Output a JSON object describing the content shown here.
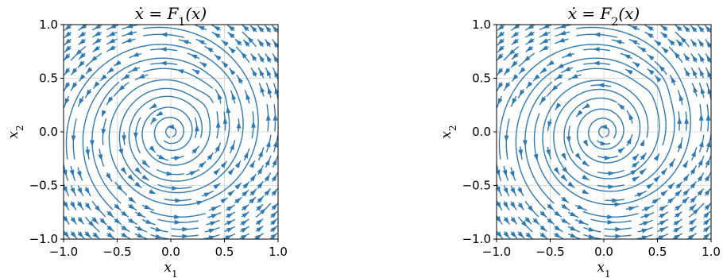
{
  "chart_data": [
    {
      "type": "streamplot",
      "title_parts": {
        "lhs": "ẋ",
        "rhs_fn": "F",
        "rhs_sub": "1",
        "rhs_arg": "(x)"
      },
      "xlabel": {
        "base": "x",
        "sub": "1"
      },
      "ylabel": {
        "base": "x",
        "sub": "2"
      },
      "xlim": [
        -1.0,
        1.0
      ],
      "ylim": [
        -1.0,
        1.0
      ],
      "xticks": [
        "−1.0",
        "−0.5",
        "0.0",
        "0.5",
        "1.0"
      ],
      "yticks": [
        "−1.0",
        "−0.5",
        "0.0",
        "0.5",
        "1.0"
      ],
      "grid": true,
      "color": "#2e7bb4",
      "field": {
        "type": "spiral-source",
        "center": [
          0.0,
          0.0
        ],
        "perturbation_center": [
          0.4,
          0.35
        ]
      }
    },
    {
      "type": "streamplot",
      "title_parts": {
        "lhs": "ẋ",
        "rhs_fn": "F",
        "rhs_sub": "2",
        "rhs_arg": "(x)"
      },
      "xlabel": {
        "base": "x",
        "sub": "1"
      },
      "ylabel": {
        "base": "x",
        "sub": "2"
      },
      "xlim": [
        -1.0,
        1.0
      ],
      "ylim": [
        -1.0,
        1.0
      ],
      "xticks": [
        "−1.0",
        "−0.5",
        "0.0",
        "0.5",
        "1.0"
      ],
      "yticks": [
        "−1.0",
        "−0.5",
        "0.0",
        "0.5",
        "1.0"
      ],
      "grid": true,
      "color": "#2e7bb4",
      "field": {
        "type": "spiral-source",
        "center": [
          0.0,
          0.0
        ],
        "perturbation_center": [
          0.5,
          0.45
        ]
      }
    }
  ]
}
